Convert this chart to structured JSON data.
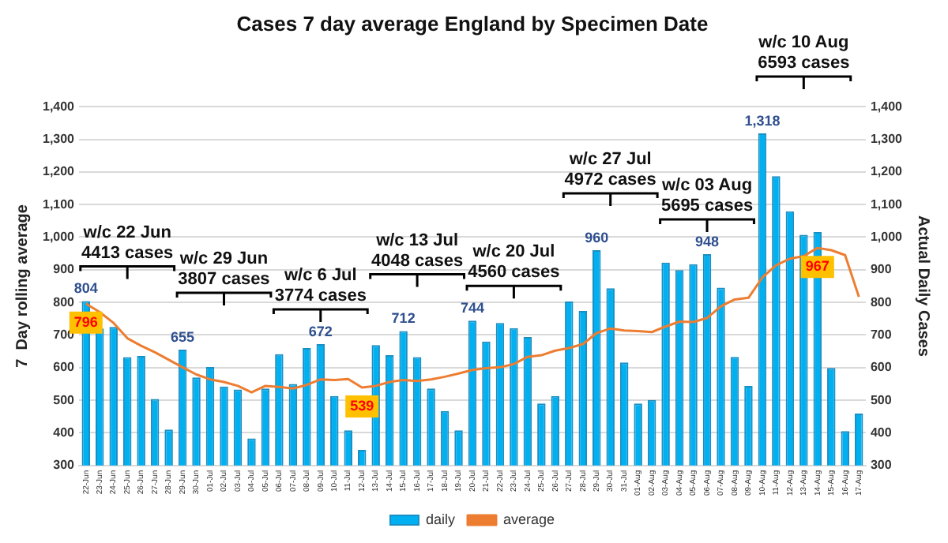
{
  "chart_data": {
    "type": "bar",
    "title": "Cases 7 day average England by Specimen Date",
    "ylabel": "7  Day rolling average",
    "y2label": "Actual Daily Cases",
    "categories": [
      "22-Jun",
      "23-Jun",
      "24-Jun",
      "25-Jun",
      "26-Jun",
      "27-Jun",
      "28-Jun",
      "29-Jun",
      "30-Jun",
      "01-Jul",
      "02-Jul",
      "03-Jul",
      "04-Jul",
      "05-Jul",
      "06-Jul",
      "07-Jul",
      "08-Jul",
      "09-Jul",
      "10-Jul",
      "11-Jul",
      "12-Jul",
      "13-Jul",
      "14-Jul",
      "15-Jul",
      "16-Jul",
      "17-Jul",
      "18-Jul",
      "19-Jul",
      "20-Jul",
      "21-Jul",
      "22-Jul",
      "23-Jul",
      "24-Jul",
      "25-Jul",
      "26-Jul",
      "27-Jul",
      "28-Jul",
      "29-Jul",
      "30-Jul",
      "31-Jul",
      "01-Aug",
      "02-Aug",
      "03-Aug",
      "04-Aug",
      "05-Aug",
      "06-Aug",
      "07-Aug",
      "08-Aug",
      "09-Aug",
      "10-Aug",
      "11-Aug",
      "12-Aug",
      "13-Aug",
      "14-Aug",
      "15-Aug",
      "16-Aug",
      "17-Aug"
    ],
    "series": [
      {
        "name": "daily",
        "color": "#00b0f0",
        "values": [
          804,
          720,
          725,
          632,
          636,
          504,
          410,
          655,
          570,
          602,
          542,
          533,
          383,
          536,
          641,
          550,
          660,
          672,
          513,
          408,
          348,
          669,
          638,
          712,
          632,
          536,
          467,
          408,
          744,
          680,
          737,
          721,
          694,
          490,
          513,
          803,
          774,
          960,
          843,
          616,
          490,
          501,
          922,
          899,
          917,
          948,
          845,
          633,
          544,
          1318,
          1187,
          1079,
          1007,
          1016,
          599,
          405,
          459
        ],
        "value_labels": [
          "804",
          null,
          null,
          null,
          null,
          null,
          null,
          "655",
          null,
          null,
          null,
          null,
          null,
          null,
          null,
          null,
          null,
          "672",
          null,
          null,
          null,
          null,
          null,
          "712",
          null,
          null,
          null,
          null,
          "744",
          null,
          null,
          null,
          null,
          null,
          null,
          null,
          null,
          "960",
          null,
          null,
          null,
          null,
          null,
          null,
          null,
          "948",
          null,
          null,
          null,
          "1,318",
          null,
          null,
          null,
          null,
          null,
          null,
          null
        ]
      },
      {
        "name": "average",
        "type": "line",
        "color": "#ed7d31",
        "values": [
          796,
          770,
          737,
          690,
          667,
          647,
          624,
          601,
          579,
          564,
          556,
          544,
          524,
          544,
          541,
          536,
          547,
          564,
          562,
          565,
          539,
          544,
          556,
          562,
          559,
          564,
          572,
          582,
          593,
          598,
          601,
          611,
          633,
          638,
          652,
          660,
          672,
          706,
          720,
          714,
          712,
          709,
          726,
          741,
          740,
          752,
          788,
          809,
          814,
          876,
          914,
          934,
          942,
          967,
          960,
          945,
          817
        ],
        "value_labels": [
          "796",
          null,
          null,
          null,
          null,
          null,
          null,
          null,
          null,
          null,
          null,
          null,
          null,
          null,
          null,
          null,
          null,
          null,
          null,
          null,
          "539",
          null,
          null,
          null,
          null,
          null,
          null,
          null,
          null,
          null,
          null,
          null,
          null,
          null,
          null,
          null,
          null,
          null,
          null,
          null,
          null,
          null,
          null,
          null,
          null,
          null,
          null,
          null,
          null,
          null,
          null,
          null,
          null,
          "967",
          null,
          null,
          null
        ]
      }
    ],
    "ylim": [
      300,
      1400
    ],
    "yticks": [
      300,
      400,
      500,
      600,
      700,
      800,
      900,
      {
        "value": 1000,
        "label": "1,000"
      },
      {
        "value": 1100,
        "label": "1,100"
      },
      {
        "value": 1200,
        "label": "1,200"
      },
      {
        "value": 1300,
        "label": "1,300"
      },
      {
        "value": 1400,
        "label": "1,400"
      }
    ],
    "y2lim": [
      300,
      1400
    ],
    "y2ticks": [
      300,
      400,
      500,
      600,
      700,
      800,
      900,
      {
        "value": 1000,
        "label": "1,000"
      },
      {
        "value": 1100,
        "label": "1,100"
      },
      {
        "value": 1200,
        "label": "1,200"
      },
      {
        "value": 1300,
        "label": "1,300"
      },
      {
        "value": 1400,
        "label": "1,400"
      }
    ],
    "grid": "y",
    "legend": "bottom",
    "marker": "none",
    "line_style": "solid",
    "annotations": [
      "w/c 22 Jun\n4413 cases",
      "w/c 29 Jun\n3807 cases",
      "w/c 6 Jul\n3774 cases",
      "w/c 13 Jul\n4048 cases",
      "w/c 20 Jul\n4560 cases",
      "w/c 27 Jul\n4972 cases",
      "w/c 03 Aug\n5695 cases",
      "w/c 10 Aug\n6593 cases"
    ]
  }
}
